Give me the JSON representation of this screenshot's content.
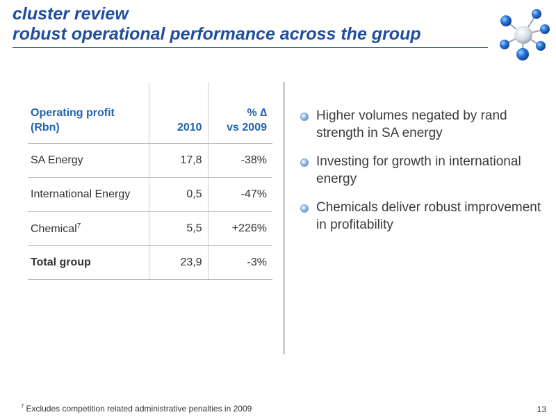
{
  "header": {
    "title_line1": "cluster review",
    "title_line2": "robust operational performance across the group"
  },
  "table": {
    "headers": [
      "Operating profit (Rbn)",
      "2010",
      "% ∆ vs 2009"
    ],
    "header_col1_line1": "Operating profit",
    "header_col1_line2": "(Rbn)",
    "header_col3_line1": "% ∆",
    "header_col3_line2": "vs 2009",
    "rows": [
      {
        "label": "SA Energy",
        "footnote": "",
        "value_2010": "17,8",
        "change": "-38%"
      },
      {
        "label": "International Energy",
        "footnote": "",
        "value_2010": "0,5",
        "change": "-47%"
      },
      {
        "label": "Chemical",
        "footnote": "7",
        "value_2010": "5,5",
        "change": "+226%"
      },
      {
        "label": "Total group",
        "footnote": "",
        "value_2010": "23,9",
        "change": "-3%"
      }
    ]
  },
  "bullets": [
    "Higher volumes negated by rand strength in SA energy",
    "Investing for growth in international energy",
    "Chemicals deliver robust improvement in profitability"
  ],
  "footnote": {
    "marker": "7",
    "text": "Excludes competition related administrative penalties in 2009"
  },
  "page_number": "13",
  "colors": {
    "title": "#1f4e9e",
    "table_header": "#1f62b0",
    "logo_blue": "#1f5fbf"
  }
}
